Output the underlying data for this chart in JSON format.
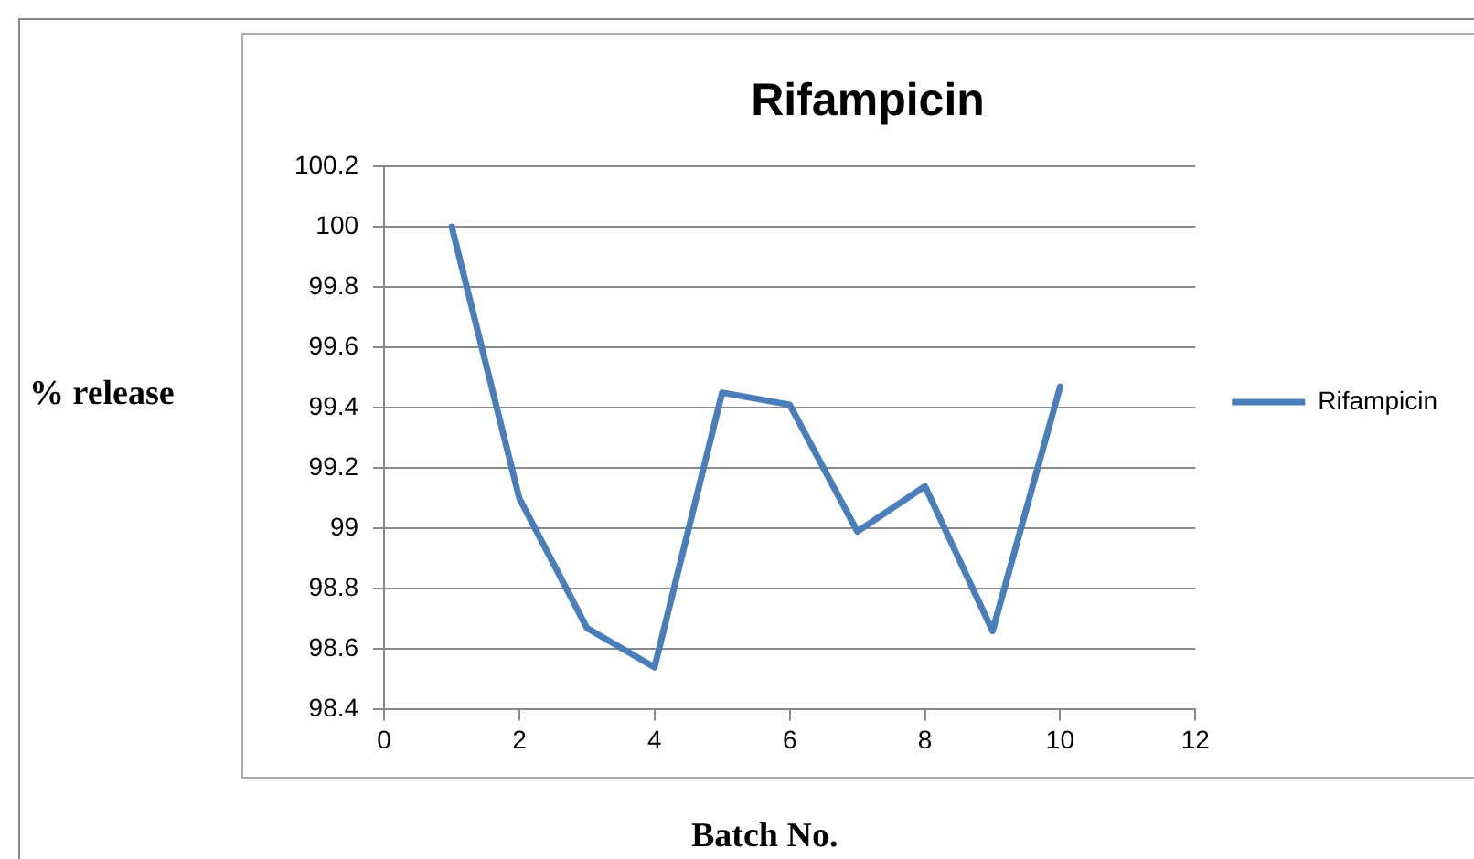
{
  "chart_data": {
    "type": "line",
    "title": "Rifampicin",
    "xlabel": "Batch No.",
    "ylabel": "% release",
    "x": [
      1,
      2,
      3,
      4,
      5,
      6,
      7,
      8,
      9,
      10
    ],
    "series": [
      {
        "name": "Rifampicin",
        "color": "#4a7ebb",
        "values": [
          100,
          99.1,
          98.67,
          98.54,
          99.45,
          99.41,
          98.99,
          99.14,
          98.66,
          99.47
        ]
      }
    ],
    "xlim": [
      0,
      12
    ],
    "xticks": [
      0,
      2,
      4,
      6,
      8,
      10,
      12
    ],
    "ylim": [
      98.4,
      100.2
    ],
    "yticks": [
      98.4,
      98.6,
      98.8,
      99,
      99.2,
      99.4,
      99.6,
      99.8,
      100,
      100.2
    ],
    "grid": "y",
    "legend": "right",
    "marker": "none",
    "line_style": "solid"
  }
}
